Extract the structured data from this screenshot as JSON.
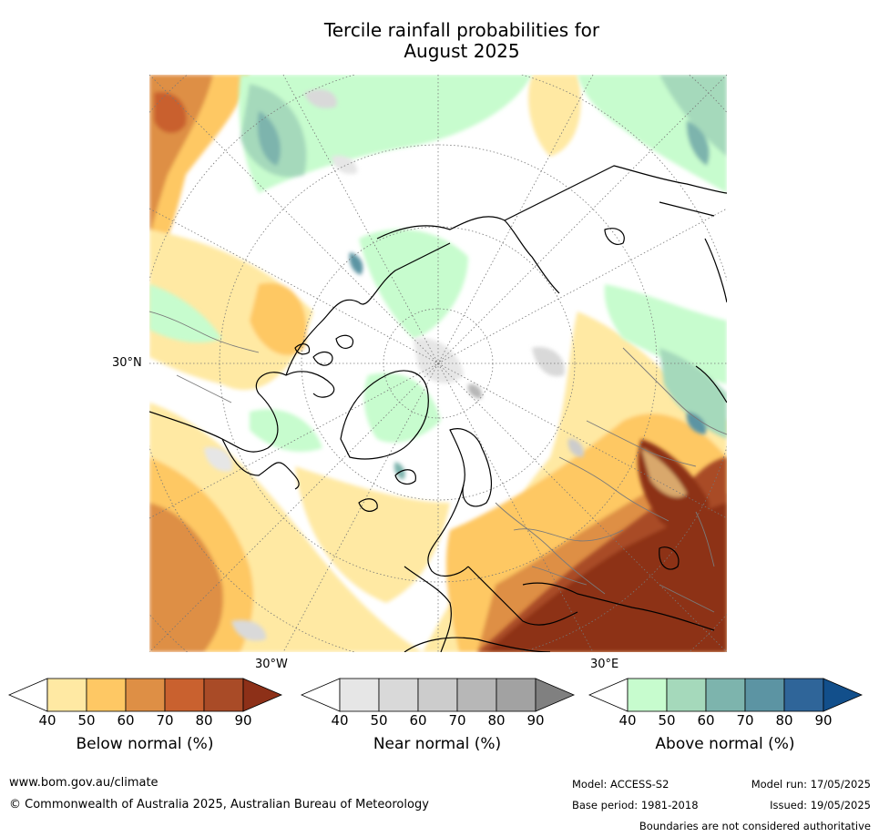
{
  "title_line1": "Tercile rainfall probabilities for",
  "title_line2": "August 2025",
  "map": {
    "lat_label": "30°N",
    "lon_label_left": "30°W",
    "lon_label_right": "30°E"
  },
  "colorbars": [
    {
      "title": "Below normal (%)",
      "ticks": [
        "40",
        "50",
        "60",
        "70",
        "80",
        "90"
      ],
      "colors": [
        "#ffffff",
        "#ffe9a3",
        "#fec864",
        "#de8f45",
        "#c9612f",
        "#a94b27",
        "#8d3018"
      ]
    },
    {
      "title": "Near normal (%)",
      "ticks": [
        "40",
        "50",
        "60",
        "70",
        "80",
        "90"
      ],
      "colors": [
        "#ffffff",
        "#e6e6e6",
        "#d9d9d9",
        "#cccccc",
        "#b7b7b7",
        "#a2a2a2",
        "#808080"
      ]
    },
    {
      "title": "Above normal (%)",
      "ticks": [
        "40",
        "50",
        "60",
        "70",
        "80",
        "90"
      ],
      "colors": [
        "#ffffff",
        "#c7fcce",
        "#a5d9bb",
        "#7db4ad",
        "#5c94a3",
        "#2f6599",
        "#124f8b"
      ]
    }
  ],
  "footer": {
    "website": "www.bom.gov.au/climate",
    "copyright": "© Commonwealth of Australia 2025, Australian Bureau of Meteorology",
    "model": "Model: ACCESS-S2",
    "model_run": "Model run: 17/05/2025",
    "base_period": "Base period: 1981-2018",
    "issued": "Issued: 19/05/2025",
    "disclaimer": "Boundaries are not considered authoritative"
  }
}
